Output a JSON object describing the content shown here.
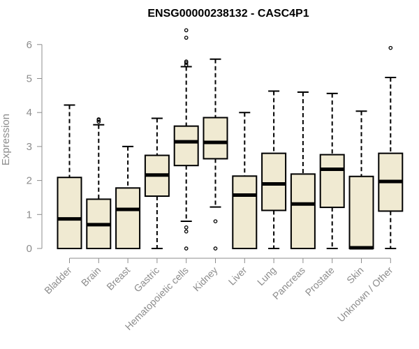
{
  "chart_data": {
    "type": "boxplot",
    "title": "ENSG00000238132 - CASC4P1",
    "xlabel": "",
    "ylabel": "Expression",
    "ylim": [
      0,
      6.5
    ],
    "yticks": [
      "0",
      "1",
      "2",
      "3",
      "4",
      "5",
      "6"
    ],
    "grid": false,
    "legend": "none",
    "box_fill": "#f0ead2",
    "categories": [
      "Bladder",
      "Brain",
      "Breast",
      "Gastric",
      "Hematopoietic cells",
      "Kidney",
      "Liver",
      "Lung",
      "Pancreas",
      "Prostate",
      "Skin",
      "Unknown / Other"
    ],
    "boxes": [
      {
        "min": 0,
        "q1": 0,
        "median": 0.87,
        "q3": 2.09,
        "max": 4.22,
        "outliers": []
      },
      {
        "min": 0,
        "q1": 0,
        "median": 0.7,
        "q3": 1.45,
        "max": 3.64,
        "outliers": [
          3.73,
          3.78,
          3.8
        ]
      },
      {
        "min": 0,
        "q1": 0,
        "median": 1.15,
        "q3": 1.78,
        "max": 3.0,
        "outliers": []
      },
      {
        "min": 0,
        "q1": 1.54,
        "median": 2.16,
        "q3": 2.74,
        "max": 3.83,
        "outliers": []
      },
      {
        "min": 0.8,
        "q1": 2.44,
        "median": 3.14,
        "q3": 3.6,
        "max": 5.35,
        "outliers": [
          0,
          0.5,
          0.62,
          5.4,
          5.46,
          5.5,
          6.2,
          6.42
        ]
      },
      {
        "min": 1.22,
        "q1": 2.64,
        "median": 3.12,
        "q3": 3.85,
        "max": 5.57,
        "outliers": [
          0,
          0.8
        ]
      },
      {
        "min": 0,
        "q1": 0,
        "median": 1.57,
        "q3": 2.13,
        "max": 4.0,
        "outliers": []
      },
      {
        "min": 0,
        "q1": 1.12,
        "median": 1.9,
        "q3": 2.8,
        "max": 4.63,
        "outliers": []
      },
      {
        "min": 0,
        "q1": 0,
        "median": 1.31,
        "q3": 2.19,
        "max": 4.6,
        "outliers": []
      },
      {
        "min": 0,
        "q1": 1.21,
        "median": 2.33,
        "q3": 2.76,
        "max": 4.56,
        "outliers": []
      },
      {
        "min": 0,
        "q1": 0,
        "median": 0.02,
        "q3": 2.12,
        "max": 4.04,
        "outliers": []
      },
      {
        "min": 0,
        "q1": 1.1,
        "median": 1.97,
        "q3": 2.8,
        "max": 5.03,
        "outliers": [
          5.9
        ]
      }
    ]
  }
}
